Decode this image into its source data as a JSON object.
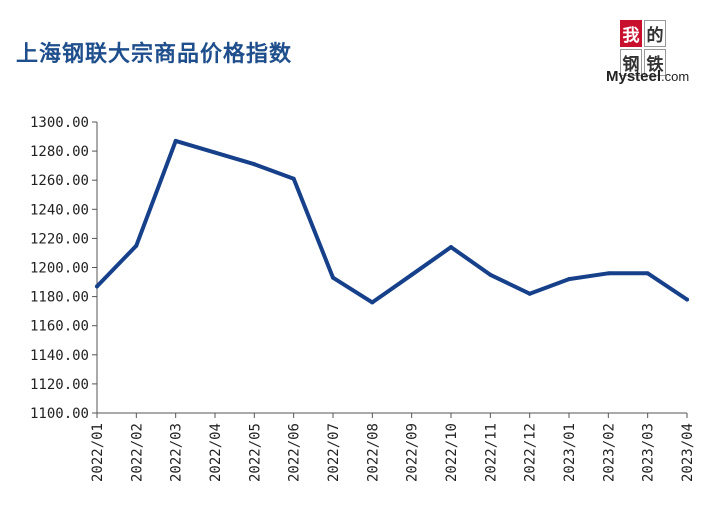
{
  "header": {
    "title": "上海钢联大宗商品价格指数"
  },
  "logo": {
    "chars": [
      "我",
      "的",
      "钢",
      "铁"
    ],
    "brand": "Mysteel",
    "domain": ".com",
    "accent_color": "#c8102e"
  },
  "chart_data": {
    "type": "line",
    "title": "上海钢联大宗商品价格指数",
    "xlabel": "",
    "ylabel": "",
    "categories": [
      "2022/01",
      "2022/02",
      "2022/03",
      "2022/04",
      "2022/05",
      "2022/06",
      "2022/07",
      "2022/08",
      "2022/09",
      "2022/10",
      "2022/11",
      "2022/12",
      "2023/01",
      "2023/02",
      "2023/03",
      "2023/04"
    ],
    "series": [
      {
        "values": [
          1187,
          1215,
          1287,
          1279,
          1271,
          1261,
          1193,
          1176,
          1195,
          1214,
          1195,
          1182,
          1192,
          1196,
          1196,
          1178
        ],
        "color": "#17408b"
      }
    ],
    "ylim": [
      1100,
      1300
    ],
    "yticks": [
      "1100.00",
      "1120.00",
      "1140.00",
      "1160.00",
      "1180.00",
      "1200.00",
      "1220.00",
      "1240.00",
      "1260.00",
      "1280.00",
      "1300.00"
    ],
    "grid": false,
    "legend": "none"
  }
}
